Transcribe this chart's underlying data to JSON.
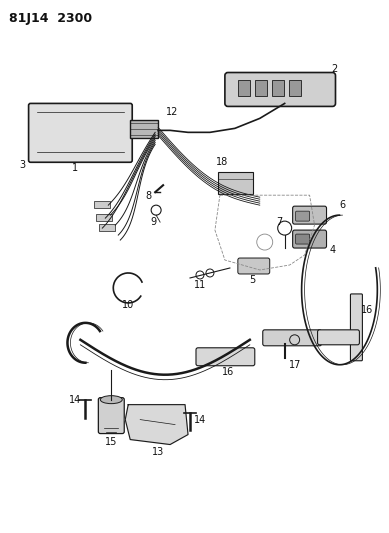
{
  "title": "81J14  2300",
  "bg_color": "#ffffff",
  "lc": "#1a1a1a",
  "figsize": [
    3.89,
    5.33
  ],
  "dpi": 100
}
